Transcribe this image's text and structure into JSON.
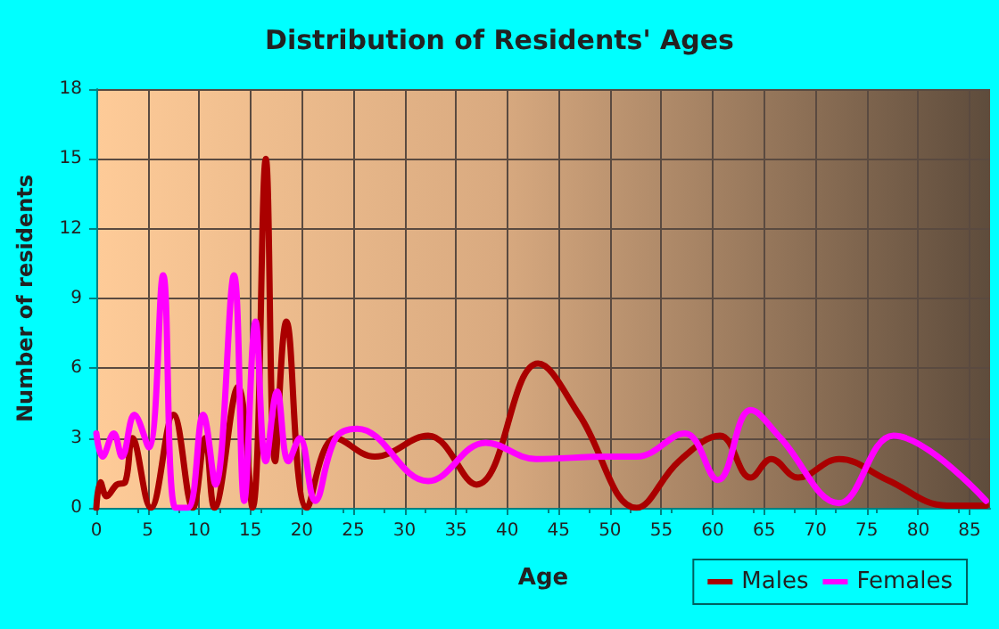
{
  "chart_data": {
    "type": "line",
    "title": "Distribution of Residents' Ages",
    "xlabel": "Age",
    "ylabel": "Number of residents",
    "xlim": [
      0,
      87
    ],
    "xticks": [
      0,
      5,
      10,
      15,
      20,
      25,
      30,
      35,
      40,
      45,
      50,
      55,
      60,
      65,
      70,
      75,
      80,
      85
    ],
    "ylim": [
      0,
      18
    ],
    "yticks": [
      0,
      3,
      6,
      9,
      12,
      15,
      18
    ],
    "grid": true,
    "legend": "bottom right",
    "marker": "none",
    "line_style": "solid",
    "series": [
      {
        "name": "Males",
        "color": "#aa0000",
        "x": [
          0,
          0.4,
          1,
          2,
          2.8,
          3.5,
          5.3,
          7.5,
          9.4,
          10.6,
          11.5,
          13.8,
          15.2,
          16.5,
          17.4,
          18.5,
          20.5,
          23.3,
          27.1,
          32.3,
          37,
          43,
          47,
          52.6,
          56.7,
          60.7,
          63.7,
          65.7,
          68.3,
          72.3,
          77,
          82.8,
          86.6
        ],
        "values": [
          0,
          1.1,
          0.5,
          1,
          1.1,
          3,
          0,
          4,
          0,
          3,
          0,
          5.2,
          0,
          15,
          2,
          8,
          0,
          3,
          2.2,
          3.1,
          1,
          6.2,
          4,
          0,
          2,
          3.1,
          1.3,
          2.1,
          1.3,
          2.1,
          1.2,
          0.1,
          0.1
        ]
      },
      {
        "name": "Females",
        "color": "#ff00ff",
        "x": [
          0,
          0.6,
          1.7,
          2.5,
          3.7,
          5.1,
          6.5,
          7.7,
          8.9,
          10.4,
          11.6,
          13.4,
          14.4,
          15.5,
          16.5,
          17.6,
          18.7,
          19.8,
          21.3,
          23.3,
          25.4,
          32.3,
          37.9,
          42.8,
          49.7,
          52.6,
          57.3,
          60.5,
          63.7,
          66.6,
          72.3,
          77.6,
          86.6
        ],
        "values": [
          3.2,
          2.2,
          3.2,
          2.2,
          4,
          2.6,
          10,
          0,
          0,
          4,
          1,
          10,
          0.3,
          8,
          2,
          5,
          2,
          3,
          0.3,
          3,
          3.4,
          1.15,
          2.8,
          2.1,
          2.2,
          2.2,
          3.2,
          1.2,
          4.2,
          3,
          0.2,
          3.1,
          0.3
        ]
      }
    ]
  }
}
